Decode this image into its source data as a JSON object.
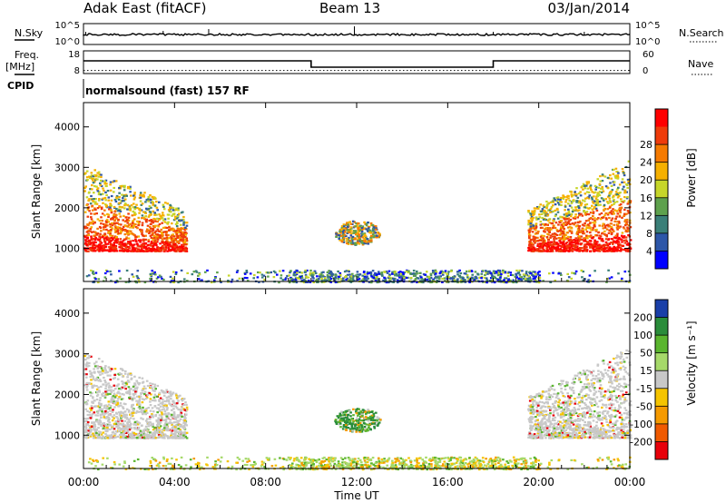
{
  "header": {
    "station": "Adak East (fitACF)",
    "beam": "Beam 13",
    "date": "03/Jan/2014"
  },
  "left_labels": {
    "nsky": "N.Sky",
    "freq": "Freq.",
    "mhz": "[MHz]",
    "cpid": "CPID"
  },
  "right_labels": {
    "nsearch": "N.Search",
    "nave": "Nave"
  },
  "cpid_text": "normalsound (fast) 157 RF",
  "chart_data": [
    {
      "type": "line",
      "name": "noise-panel",
      "y_left_ticks": [
        "10^5",
        "10^0"
      ],
      "y_right_ticks": [
        "10^5",
        "10^0"
      ],
      "xlim": [
        "00:00",
        "24:00"
      ],
      "noise_level_fraction": 0.13
    },
    {
      "type": "line",
      "name": "frequency-nave-panel",
      "y_left_ticks": [
        "18",
        "8"
      ],
      "y_right_ticks": [
        "60",
        "0"
      ],
      "freq_segments": [
        {
          "start": "00:00",
          "end": "10:00",
          "mhz": 13.6
        },
        {
          "start": "10:00",
          "end": "18:00",
          "mhz": 10.8
        },
        {
          "start": "18:00",
          "end": "24:00",
          "mhz": 13.6
        }
      ],
      "nave_level": 8
    },
    {
      "type": "heatmap",
      "name": "power-panel",
      "ylabel": "Slant Range [km]",
      "y_ticks": [
        "1000",
        "2000",
        "3000",
        "4000"
      ],
      "ylim": [
        180,
        4600
      ],
      "colorbar_label": "Power [dB]",
      "colorbar_ticks": [
        "4",
        "8",
        "12",
        "16",
        "20",
        "24",
        "28"
      ],
      "colorbar_colors": [
        "#0000ff",
        "#2d56a8",
        "#3a7f78",
        "#5ea14d",
        "#c6d62a",
        "#f5b000",
        "#f57a00",
        "#ef3b0a",
        "#ff0000"
      ],
      "regions": [
        {
          "label": "night-echo-left",
          "t_start": 0.0,
          "t_end": 4.5,
          "range_low": 950,
          "range_high": 3100
        },
        {
          "label": "mid-blob",
          "t_start": 11.0,
          "t_end": 13.0,
          "range_low": 1100,
          "range_high": 1700
        },
        {
          "label": "night-echo-right",
          "t_start": 19.5,
          "t_end": 24.0,
          "range_low": 950,
          "range_high": 3200
        },
        {
          "label": "ground-scatter-low",
          "t_start": 0.0,
          "t_end": 24.0,
          "range_low": 180,
          "range_high": 480
        }
      ]
    },
    {
      "type": "heatmap",
      "name": "velocity-panel",
      "ylabel": "Slant Range [km]",
      "y_ticks": [
        "1000",
        "2000",
        "3000",
        "4000"
      ],
      "ylim": [
        180,
        4600
      ],
      "colorbar_label": "Velocity [m s⁻¹]",
      "colorbar_ticks": [
        "200",
        "100",
        "50",
        "15",
        "-15",
        "-50",
        "-100",
        "-200"
      ],
      "colorbar_colors": [
        "#1a3fa8",
        "#2a8c3a",
        "#5ab52e",
        "#a6d96a",
        "#c8c8c8",
        "#f5c400",
        "#f59a00",
        "#f05a00",
        "#e8000a"
      ],
      "regions": [
        {
          "label": "night-echo-left",
          "t_start": 0.0,
          "t_end": 4.5,
          "range_low": 950,
          "range_high": 3100
        },
        {
          "label": "mid-blob",
          "t_start": 11.0,
          "t_end": 13.0,
          "range_low": 1100,
          "range_high": 1700
        },
        {
          "label": "night-echo-right",
          "t_start": 19.5,
          "t_end": 24.0,
          "range_low": 950,
          "range_high": 3200
        },
        {
          "label": "ground-scatter-low",
          "t_start": 0.0,
          "t_end": 24.0,
          "range_low": 180,
          "range_high": 480
        }
      ]
    }
  ],
  "x_axis": {
    "ticks": [
      "00:00",
      "04:00",
      "08:00",
      "12:00",
      "16:00",
      "20:00",
      "00:00"
    ],
    "label": "Time UT"
  }
}
